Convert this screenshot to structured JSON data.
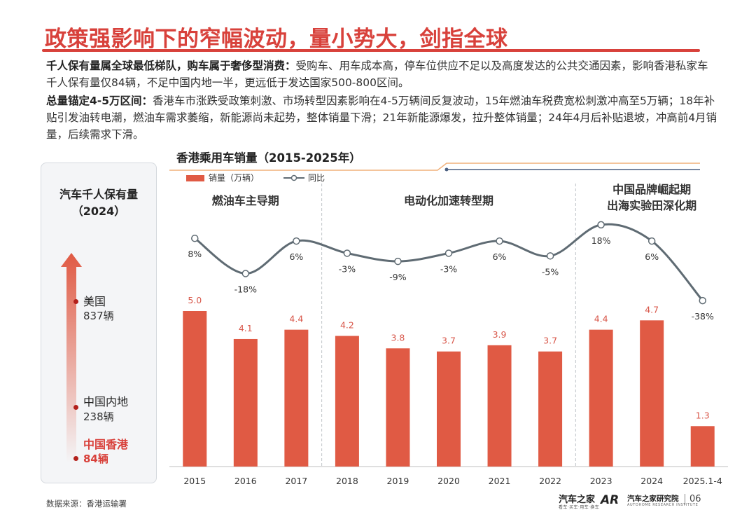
{
  "title": "政策强影响下的窄幅波动，量小势大，剑指全球",
  "paragraphs": {
    "p1_bold": "千人保有量属全球最低梯队，购车属于奢侈型消费：",
    "p1_text": "受购车、用车成本高，停车位供应不足以及高度发达的公共交通因素，影响香港私家车千人保有量仅84辆，不足中国内地一半，更远低于发达国家500-800区间。",
    "p2_bold": "总量锚定4-5万区间：",
    "p2_text": "香港车市涨跌受政策刺激、市场转型因素影响在4-5万辆间反复波动，15年燃油车税费宽松刺激冲高至5万辆；18年补贴引发油转电潮，燃油车需求萎缩，新能源尚未起势，整体销量下滑；21年新能源爆发，拉升整体销量；24年4月后补贴退坡，冲高前4月销量，后续需求下滑。"
  },
  "car_ownership": {
    "title_line1": "汽车千人保有量",
    "title_line2": "（2024）",
    "items": [
      {
        "name": "美国",
        "value": "837辆",
        "highlight": false
      },
      {
        "name": "中国内地",
        "value": "238辆",
        "highlight": false
      },
      {
        "name": "中国香港",
        "value": "84辆",
        "highlight": true
      }
    ]
  },
  "chart_title": "香港乘用车销量（2015-2025年）",
  "chart_data": {
    "type": "bar",
    "categories": [
      "2015",
      "2016",
      "2017",
      "2018",
      "2019",
      "2020",
      "2021",
      "2022",
      "2023",
      "2024",
      "2025.1-4"
    ],
    "series": [
      {
        "name": "销量（万辆）",
        "type": "bar",
        "values": [
          5.0,
          4.1,
          4.4,
          4.2,
          3.8,
          3.7,
          3.9,
          3.7,
          4.4,
          4.7,
          1.3
        ],
        "labels": [
          "5.0",
          "4.1",
          "4.4",
          "4.2",
          "3.8",
          "3.7",
          "3.9",
          "3.7",
          "4.4",
          "4.7",
          "1.3"
        ]
      },
      {
        "name": "同比",
        "type": "line",
        "values": [
          8,
          -18,
          6,
          -3,
          -9,
          -3,
          6,
          -5,
          18,
          6,
          -38
        ],
        "labels": [
          "8%",
          "-18%",
          "6%",
          "-3%",
          "-9%",
          "-3%",
          "6%",
          "-5%",
          "18%",
          "6%",
          "-38%"
        ]
      }
    ],
    "bar_ylim": [
      0,
      5.5
    ],
    "line_ylim": [
      -40,
      20
    ],
    "phases": [
      {
        "label": "燃油车主导期",
        "start": 0,
        "end": 2
      },
      {
        "label": "电动化加速转型期",
        "start": 3,
        "end": 7
      },
      {
        "label": "中国品牌崛起期\n出海实验田深化期",
        "start": 8,
        "end": 10
      }
    ],
    "legend_position": "top-left",
    "colors": {
      "bar": "#e05a44",
      "line": "#5f6b73",
      "bar_label": "#d8574a",
      "line_label": "#333333",
      "accent_line": "#f0b07a",
      "accent_line2": "#4a5f80"
    }
  },
  "source": "数据来源：香港运输署",
  "brand": {
    "logo": "汽车之家",
    "logo_sub": "看车·买车·用车·换车",
    "institute_mark": "AR",
    "institute": "汽车之家研究院",
    "institute_en": "AUTOHOME RESEARCH INSTITUTE",
    "page": "06"
  }
}
